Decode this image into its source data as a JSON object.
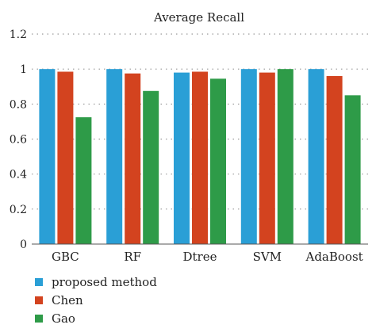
{
  "chart_data": {
    "type": "bar",
    "title": "Average Recall",
    "categories": [
      "GBC",
      "RF",
      "Dtree",
      "SVM",
      "AdaBoost"
    ],
    "series": [
      {
        "name": "proposed method",
        "color": "#2a9fd6",
        "values": [
          1.0,
          1.0,
          0.98,
          1.0,
          1.0
        ]
      },
      {
        "name": "Chen",
        "color": "#d3431f",
        "values": [
          0.985,
          0.975,
          0.985,
          0.98,
          0.96
        ]
      },
      {
        "name": "Gao",
        "color": "#2e9b48",
        "values": [
          0.725,
          0.875,
          0.945,
          1.0,
          0.85
        ]
      }
    ],
    "ylim": [
      0,
      1.2
    ],
    "yticks": [
      "0",
      "0.2",
      "0.4",
      "0.6",
      "0.8",
      "1",
      "1.2"
    ],
    "xlabel": "",
    "ylabel": "",
    "grid": "horizontal dotted",
    "legend_position": "bottom-left"
  }
}
